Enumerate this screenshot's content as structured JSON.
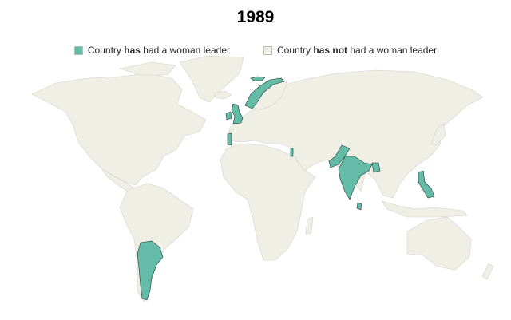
{
  "title": "1989",
  "legend": {
    "has": {
      "prefix": "Country ",
      "bold": "has",
      "suffix": " had a woman leader",
      "color": "#63bba8"
    },
    "has_not": {
      "prefix": "Country ",
      "bold": "has not",
      "suffix": " had a woman leader",
      "color": "#efefe6"
    }
  },
  "highlighted_countries": [
    "Norway",
    "United Kingdom",
    "Ireland",
    "Portugal",
    "Israel",
    "Pakistan",
    "India",
    "Sri Lanka",
    "Bangladesh",
    "Philippines",
    "Argentina"
  ]
}
